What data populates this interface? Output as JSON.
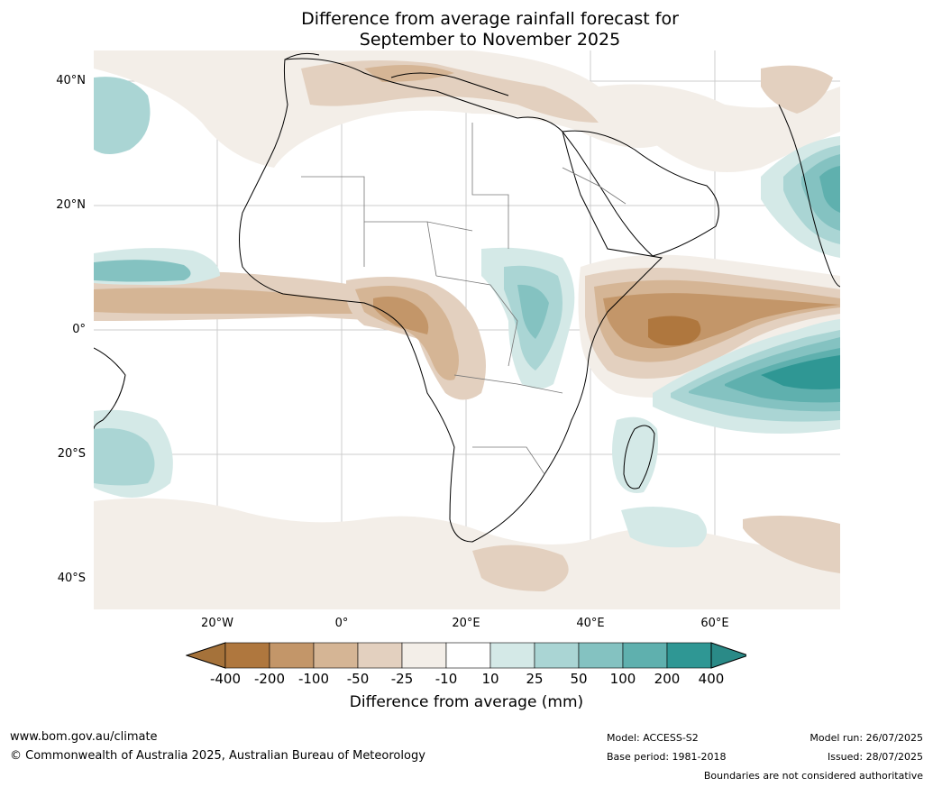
{
  "title": {
    "line1": "Difference from average rainfall forecast for",
    "line2": "September to November 2025"
  },
  "map": {
    "lat_labels": [
      "40°N",
      "20°N",
      "0°",
      "20°S",
      "40°S"
    ],
    "lon_labels": [
      "20°W",
      "0°",
      "20°E",
      "40°E",
      "60°E"
    ]
  },
  "legend": {
    "ticks": [
      "-400",
      "-200",
      "-100",
      "-50",
      "-25",
      "-10",
      "10",
      "25",
      "50",
      "100",
      "200",
      "400"
    ],
    "colors": [
      "#a5723a",
      "#af773e",
      "#c39669",
      "#d5b595",
      "#e3d0bf",
      "#f3eee8",
      "#ffffff",
      "#d4e9e7",
      "#aad5d4",
      "#84c2c1",
      "#5fb0ae",
      "#2f9794",
      "#2a8a87"
    ],
    "title": "Difference from average (mm)"
  },
  "footer": {
    "website": "www.bom.gov.au/climate",
    "copyright": "© Commonwealth of Australia 2025, Australian Bureau of Meteorology",
    "model": "Model: ACCESS-S2",
    "base_period": "Base period: 1981-2018",
    "model_run": "Model run: 26/07/2025",
    "issued": "Issued: 28/07/2025",
    "disclaimer": "Boundaries are not considered authoritative"
  }
}
